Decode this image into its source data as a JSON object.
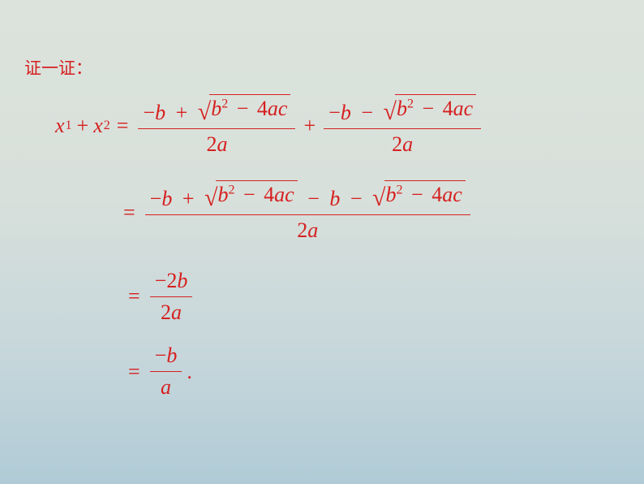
{
  "title": "证一证：",
  "vars": {
    "x": "x",
    "b": "b",
    "a": "a",
    "c": "c"
  },
  "subs": {
    "one": "1",
    "two": "2"
  },
  "nums": {
    "two": "2",
    "four": "4",
    "minus2": "−2"
  },
  "ops": {
    "plus": "+",
    "minus": "−",
    "eq": "="
  },
  "sqrt_sign": "√",
  "period": ".",
  "colors": {
    "text": "#d62020",
    "bg_top": "#dce3dc",
    "bg_bottom": "#b0cbd6"
  },
  "font_sizes": {
    "title": 21,
    "math": 26,
    "sub": 16
  }
}
